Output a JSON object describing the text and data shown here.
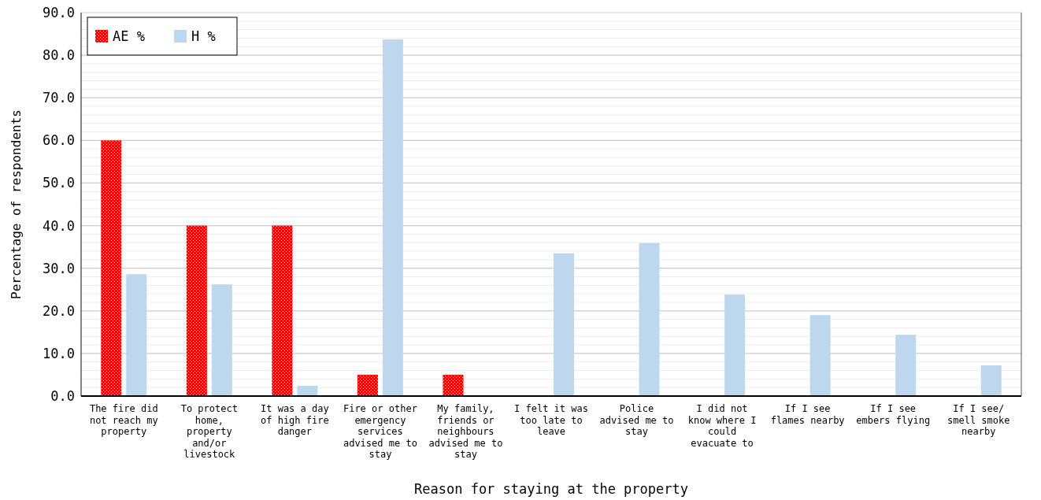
{
  "chart_data": {
    "type": "bar",
    "xlabel": "Reason for staying at the property",
    "ylabel": "Percentage of respondents",
    "categories": [
      "The fire did not reach my property",
      "To protect home, property and/or livestock",
      "It was a day of high fire danger",
      "Fire or other emergency services advised me to stay",
      "My family, friends or neighbours advised me to stay",
      "I felt it was too late to leave",
      "Police advised me to stay",
      "I did not know where I could evacuate to",
      "If I see flames nearby",
      "If I see embers flying",
      "If I see/ smell smoke nearby"
    ],
    "series": [
      {
        "name": "AE %",
        "color": "#ff0000",
        "values": [
          60.0,
          40.0,
          40.0,
          5.0,
          5.0,
          null,
          null,
          null,
          null,
          null,
          null
        ]
      },
      {
        "name": "H %",
        "color": "#bdd7ee",
        "values": [
          28.6,
          26.2,
          2.4,
          83.7,
          null,
          33.5,
          35.9,
          23.8,
          19.0,
          14.4,
          7.2
        ]
      }
    ],
    "ylim": [
      0,
      90
    ],
    "yticks": [
      {
        "value": 0,
        "label": "0.0"
      },
      {
        "value": 10,
        "label": "10.0"
      },
      {
        "value": 20,
        "label": "20.0"
      },
      {
        "value": 30,
        "label": "30.0"
      },
      {
        "value": 40,
        "label": "40.0"
      },
      {
        "value": 50,
        "label": "50.0"
      },
      {
        "value": 60,
        "label": "60.0"
      },
      {
        "value": 70,
        "label": "70.0"
      },
      {
        "value": 80,
        "label": "80.0"
      },
      {
        "value": 90,
        "label": "90.0"
      }
    ],
    "grid": true,
    "legend": "top left"
  }
}
